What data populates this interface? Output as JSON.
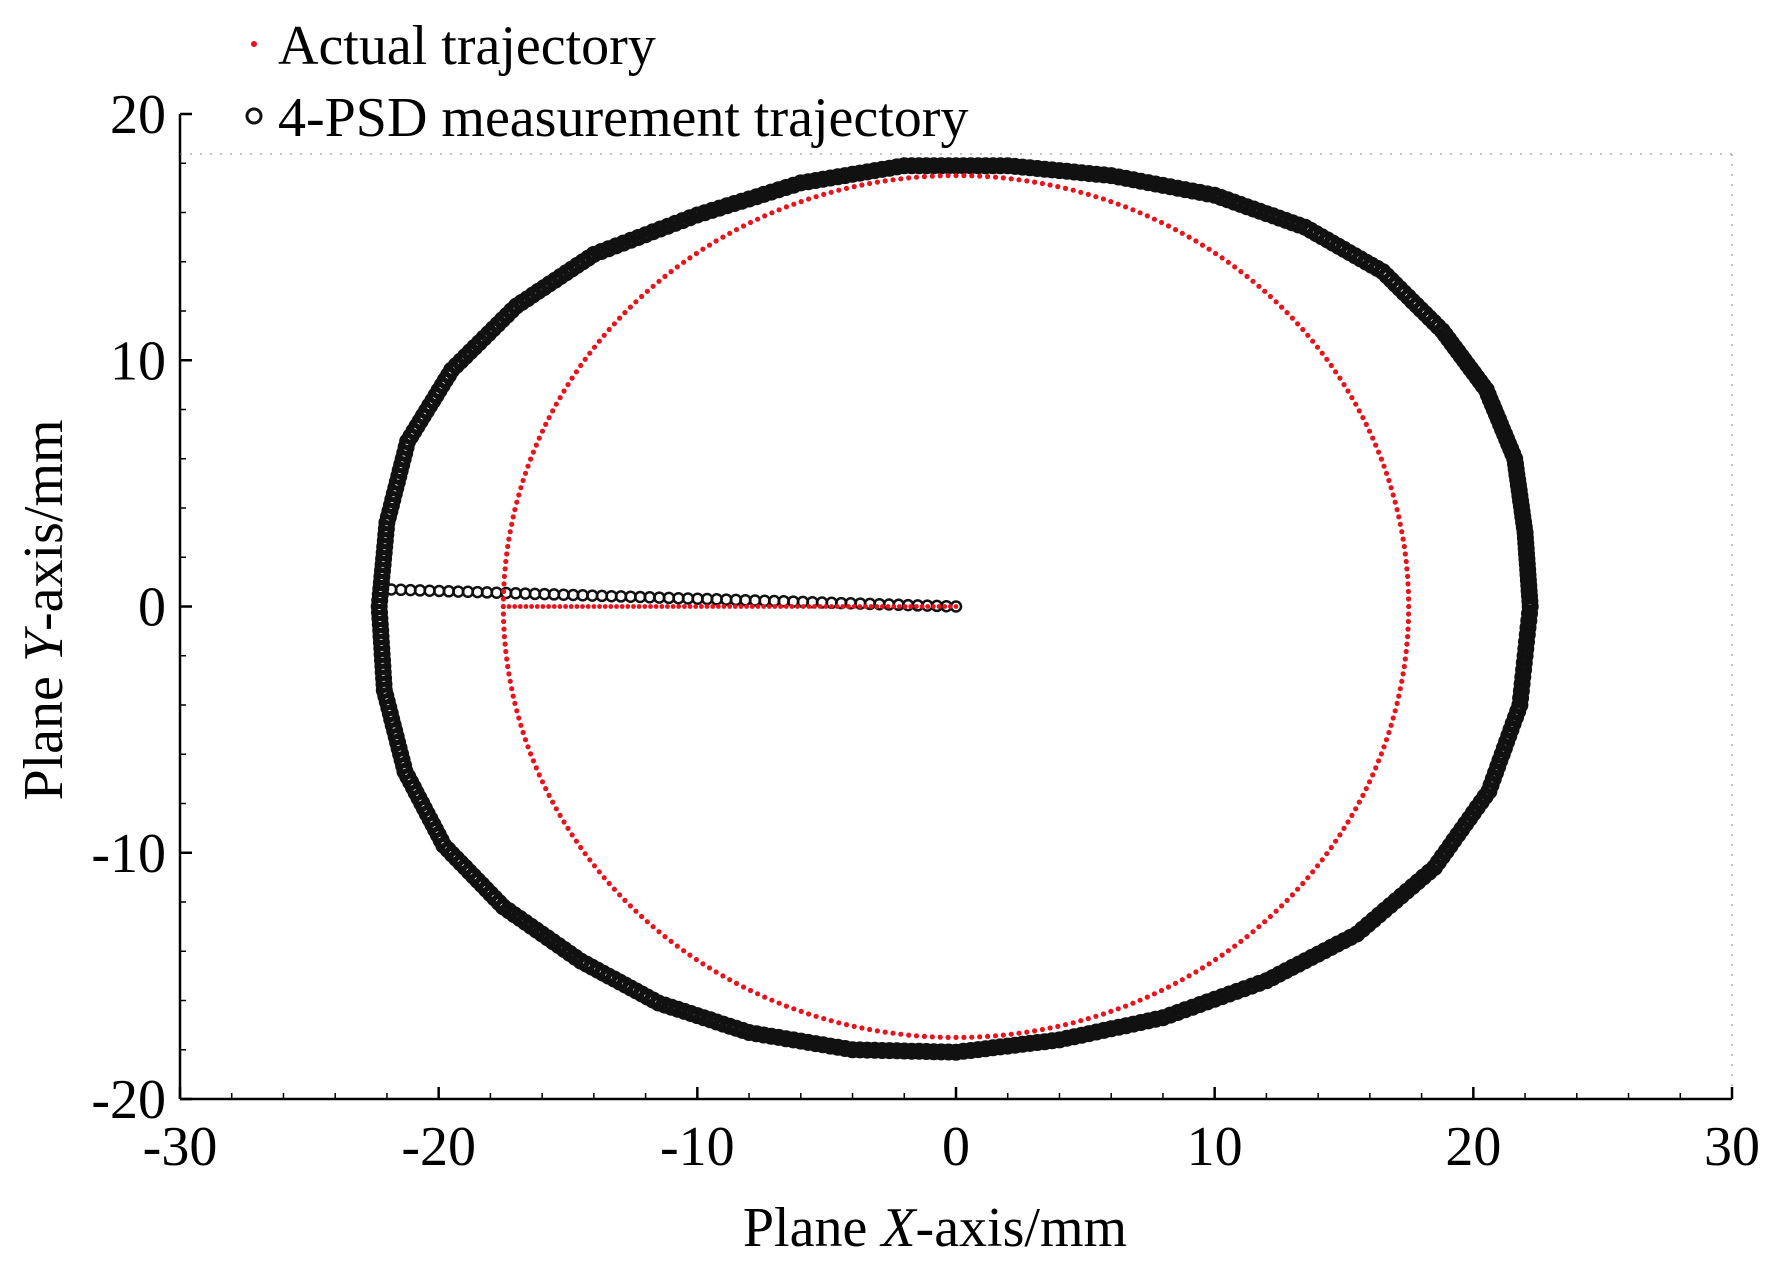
{
  "chart_data": {
    "type": "scatter",
    "title": "",
    "xlabel": {
      "prefix": "Plane ",
      "italic": "X",
      "suffix": "-axis/mm"
    },
    "ylabel": {
      "prefix": "Plane ",
      "italic": "Y",
      "suffix": "-axis/mm"
    },
    "xlim": [
      -30,
      30
    ],
    "ylim": [
      -20,
      20
    ],
    "xticks": [
      -30,
      -20,
      -10,
      0,
      10,
      20,
      30
    ],
    "yticks": [
      -20,
      -10,
      0,
      10,
      20
    ],
    "grid": false,
    "legend_position": "top-left",
    "series": [
      {
        "name": "Actual trajectory",
        "marker": "dot",
        "color": "#e8141b",
        "shape": {
          "kind": "circle",
          "center": [
            0,
            0
          ],
          "radius": 17.5
        },
        "radial_segment": {
          "from": [
            0,
            0
          ],
          "to": [
            -17.5,
            0
          ]
        }
      },
      {
        "name": "4-PSD measurement trajectory",
        "marker": "open-circle",
        "color": "#111111",
        "shape": {
          "kind": "closed-curve",
          "points": [
            [
              22.2,
              0.0
            ],
            [
              22.0,
              3.0
            ],
            [
              21.6,
              6.0
            ],
            [
              20.5,
              8.8
            ],
            [
              18.8,
              11.2
            ],
            [
              16.5,
              13.6
            ],
            [
              13.5,
              15.4
            ],
            [
              10.0,
              16.7
            ],
            [
              6.0,
              17.5
            ],
            [
              2.0,
              17.9
            ],
            [
              -2.0,
              17.9
            ],
            [
              -6.0,
              17.2
            ],
            [
              -10.0,
              15.9
            ],
            [
              -14.0,
              14.3
            ],
            [
              -17.0,
              12.2
            ],
            [
              -19.5,
              9.6
            ],
            [
              -21.2,
              6.7
            ],
            [
              -22.0,
              3.4
            ],
            [
              -22.3,
              0.0
            ],
            [
              -22.1,
              -3.4
            ],
            [
              -21.3,
              -6.7
            ],
            [
              -19.8,
              -9.7
            ],
            [
              -17.5,
              -12.2
            ],
            [
              -14.5,
              -14.4
            ],
            [
              -11.5,
              -16.1
            ],
            [
              -8.0,
              -17.3
            ],
            [
              -4.0,
              -18.0
            ],
            [
              0.0,
              -18.1
            ],
            [
              4.0,
              -17.6
            ],
            [
              8.0,
              -16.7
            ],
            [
              12.0,
              -15.2
            ],
            [
              15.5,
              -13.3
            ],
            [
              18.5,
              -10.6
            ],
            [
              20.6,
              -7.5
            ],
            [
              21.8,
              -4.0
            ],
            [
              22.2,
              0.0
            ]
          ]
        },
        "radial_segment": {
          "from": [
            0,
            0
          ],
          "to": [
            -22.2,
            0.7
          ]
        }
      }
    ]
  }
}
